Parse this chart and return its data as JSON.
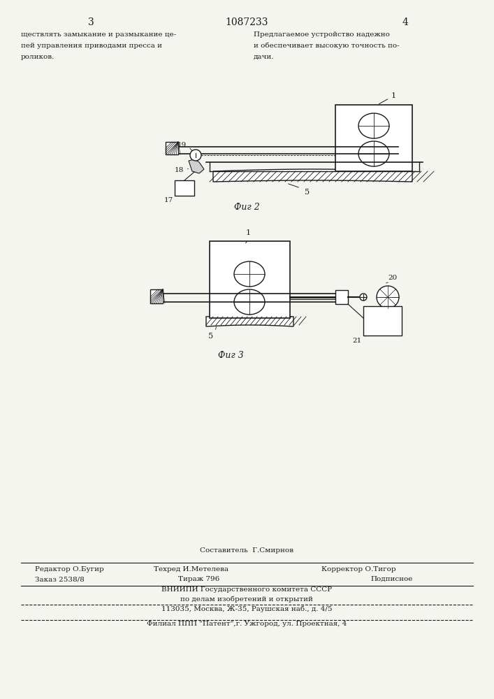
{
  "page_width": 7.07,
  "page_height": 10.0,
  "bg_color": "#f5f5f0",
  "text_color": "#1a1a1a",
  "header": {
    "left_num": "3",
    "center_num": "1087233",
    "right_num": "4"
  },
  "left_col_text": [
    "ществлять замыкание и размыкание це-",
    "пей управления приводами пресса и",
    "роликов."
  ],
  "right_col_text": [
    "Предлагаемое устройство надежно",
    "и обеспечивает высокую точность по-",
    "дачи."
  ],
  "fig2_caption": "Фиг 2",
  "fig3_caption": "Фиг 3",
  "footer_lines": [
    "Составитель  Г.Смирнов",
    "Редактор О.Бугир   Техред И.Метелева      Корректор О.Тигор",
    "Заказ 2538/8       Тираж 796                         Подписное",
    "ВНИИПИ Государственного комитета СССР",
    "по делам изобретений и открытий",
    "113035, Москва, Ж-35, Раушская наб., д. 4/5",
    "Филиал ППП \"Патент\",г. Ужгород, ул. Проектная, 4"
  ]
}
